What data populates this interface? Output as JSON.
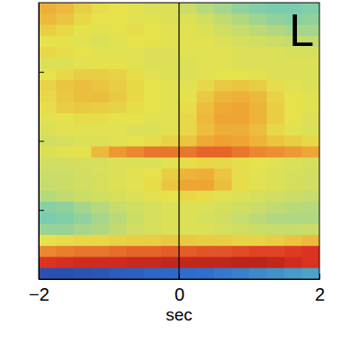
{
  "chart_data": {
    "type": "heatmap",
    "panel_label": "L",
    "x_label": "sec",
    "x": [
      -1.875,
      -1.625,
      -1.375,
      -1.125,
      -0.875,
      -0.625,
      -0.375,
      -0.125,
      0.125,
      0.375,
      0.625,
      0.875,
      1.125,
      1.375,
      1.625,
      1.875
    ],
    "y": [
      2,
      6,
      10,
      14,
      18,
      22,
      26,
      30,
      34,
      38,
      42,
      46,
      50,
      54,
      58,
      62,
      66,
      70,
      74,
      78,
      82,
      86,
      90,
      94,
      98
    ],
    "cells": [
      [
        0.72,
        0.7,
        0.66,
        0.63,
        0.62,
        0.61,
        0.6,
        0.6,
        0.57,
        0.53,
        0.5,
        0.47,
        0.45,
        0.44,
        0.44,
        0.45
      ],
      [
        0.7,
        0.68,
        0.64,
        0.62,
        0.62,
        0.61,
        0.61,
        0.6,
        0.6,
        0.58,
        0.55,
        0.52,
        0.49,
        0.47,
        0.46,
        0.47
      ],
      [
        0.66,
        0.64,
        0.62,
        0.61,
        0.62,
        0.63,
        0.62,
        0.61,
        0.61,
        0.6,
        0.58,
        0.56,
        0.54,
        0.52,
        0.5,
        0.5
      ],
      [
        0.62,
        0.62,
        0.61,
        0.6,
        0.61,
        0.62,
        0.62,
        0.61,
        0.61,
        0.61,
        0.6,
        0.59,
        0.58,
        0.57,
        0.56,
        0.55
      ],
      [
        0.64,
        0.63,
        0.62,
        0.61,
        0.61,
        0.61,
        0.6,
        0.6,
        0.61,
        0.61,
        0.61,
        0.6,
        0.6,
        0.6,
        0.59,
        0.59
      ],
      [
        0.6,
        0.6,
        0.61,
        0.62,
        0.62,
        0.61,
        0.6,
        0.6,
        0.6,
        0.61,
        0.61,
        0.6,
        0.6,
        0.6,
        0.6,
        0.6
      ],
      [
        0.62,
        0.64,
        0.66,
        0.66,
        0.65,
        0.63,
        0.61,
        0.6,
        0.6,
        0.61,
        0.62,
        0.62,
        0.61,
        0.6,
        0.6,
        0.6
      ],
      [
        0.65,
        0.68,
        0.69,
        0.68,
        0.66,
        0.64,
        0.62,
        0.61,
        0.61,
        0.64,
        0.67,
        0.68,
        0.66,
        0.63,
        0.61,
        0.6
      ],
      [
        0.64,
        0.67,
        0.69,
        0.69,
        0.67,
        0.64,
        0.62,
        0.61,
        0.62,
        0.67,
        0.71,
        0.72,
        0.7,
        0.65,
        0.62,
        0.61
      ],
      [
        0.63,
        0.66,
        0.67,
        0.66,
        0.65,
        0.63,
        0.62,
        0.61,
        0.63,
        0.69,
        0.73,
        0.74,
        0.71,
        0.66,
        0.62,
        0.61
      ],
      [
        0.61,
        0.62,
        0.63,
        0.63,
        0.62,
        0.62,
        0.61,
        0.61,
        0.64,
        0.7,
        0.74,
        0.74,
        0.71,
        0.66,
        0.62,
        0.6
      ],
      [
        0.6,
        0.61,
        0.61,
        0.61,
        0.61,
        0.6,
        0.6,
        0.61,
        0.64,
        0.69,
        0.72,
        0.72,
        0.69,
        0.64,
        0.61,
        0.6
      ],
      [
        0.58,
        0.59,
        0.6,
        0.6,
        0.61,
        0.62,
        0.63,
        0.65,
        0.68,
        0.73,
        0.75,
        0.74,
        0.71,
        0.68,
        0.66,
        0.64
      ],
      [
        0.6,
        0.61,
        0.62,
        0.7,
        0.76,
        0.78,
        0.8,
        0.8,
        0.8,
        0.82,
        0.82,
        0.8,
        0.78,
        0.77,
        0.76,
        0.74
      ],
      [
        0.58,
        0.58,
        0.59,
        0.59,
        0.6,
        0.6,
        0.6,
        0.61,
        0.63,
        0.64,
        0.64,
        0.63,
        0.62,
        0.61,
        0.6,
        0.59
      ],
      [
        0.57,
        0.57,
        0.58,
        0.59,
        0.6,
        0.61,
        0.62,
        0.66,
        0.71,
        0.72,
        0.68,
        0.63,
        0.61,
        0.6,
        0.59,
        0.58
      ],
      [
        0.56,
        0.57,
        0.58,
        0.59,
        0.6,
        0.61,
        0.63,
        0.68,
        0.74,
        0.74,
        0.69,
        0.63,
        0.61,
        0.6,
        0.59,
        0.58
      ],
      [
        0.53,
        0.55,
        0.57,
        0.58,
        0.59,
        0.6,
        0.61,
        0.62,
        0.64,
        0.63,
        0.61,
        0.6,
        0.59,
        0.58,
        0.57,
        0.56
      ],
      [
        0.46,
        0.47,
        0.5,
        0.53,
        0.56,
        0.58,
        0.59,
        0.6,
        0.6,
        0.6,
        0.59,
        0.58,
        0.57,
        0.55,
        0.54,
        0.53
      ],
      [
        0.44,
        0.45,
        0.47,
        0.5,
        0.54,
        0.57,
        0.59,
        0.6,
        0.6,
        0.59,
        0.58,
        0.56,
        0.54,
        0.52,
        0.52,
        0.52
      ],
      [
        0.48,
        0.48,
        0.5,
        0.52,
        0.55,
        0.58,
        0.59,
        0.6,
        0.6,
        0.6,
        0.59,
        0.58,
        0.57,
        0.56,
        0.56,
        0.57
      ],
      [
        0.62,
        0.63,
        0.64,
        0.64,
        0.65,
        0.66,
        0.66,
        0.67,
        0.67,
        0.66,
        0.66,
        0.65,
        0.65,
        0.66,
        0.68,
        0.7
      ],
      [
        0.78,
        0.79,
        0.8,
        0.8,
        0.81,
        0.82,
        0.82,
        0.83,
        0.83,
        0.84,
        0.84,
        0.85,
        0.86,
        0.86,
        0.87,
        0.88
      ],
      [
        0.88,
        0.89,
        0.9,
        0.9,
        0.9,
        0.91,
        0.91,
        0.92,
        0.92,
        0.92,
        0.92,
        0.93,
        0.93,
        0.92,
        0.9,
        0.88
      ],
      [
        0.1,
        0.1,
        0.11,
        0.12,
        0.14,
        0.15,
        0.17,
        0.18,
        0.19,
        0.2,
        0.22,
        0.24,
        0.26,
        0.28,
        0.3,
        0.32
      ]
    ],
    "zlim": [
      0,
      1
    ],
    "xlim": [
      -2,
      2
    ],
    "ylim": [
      0,
      100
    ],
    "xticks": [
      -2,
      0,
      2
    ],
    "yticks": [
      25,
      50,
      75
    ],
    "vlines": [
      0
    ],
    "tick_labels": "x"
  }
}
